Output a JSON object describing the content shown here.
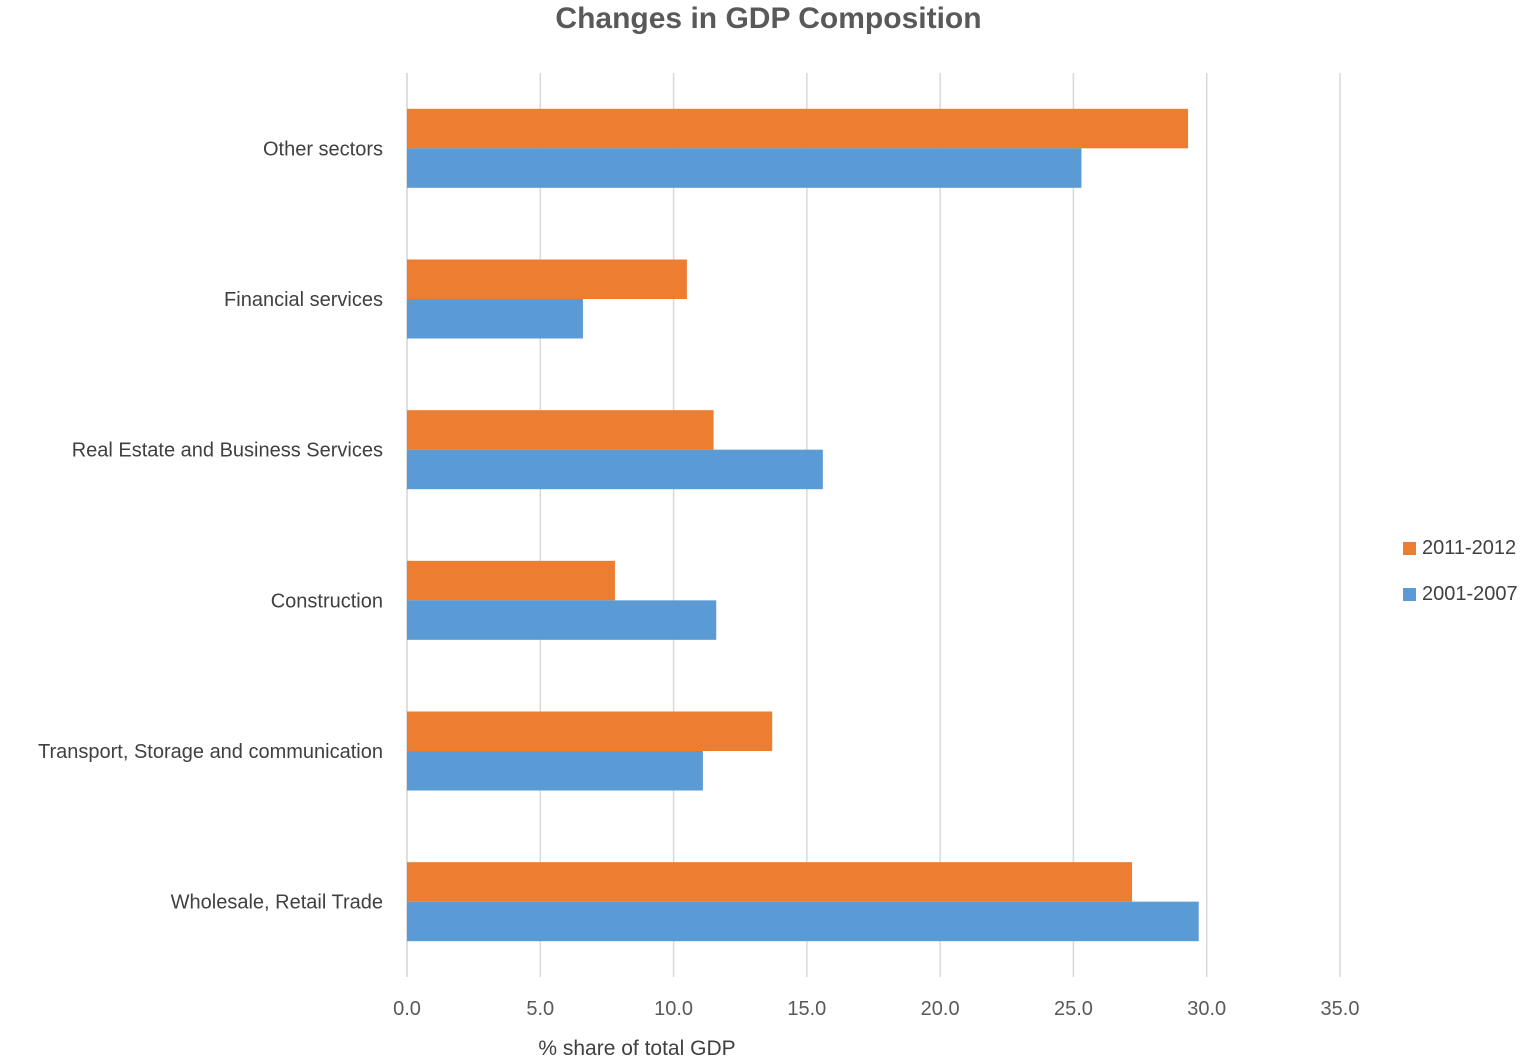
{
  "chart_data": {
    "type": "bar",
    "orientation": "horizontal",
    "title": "Changes in GDP Composition",
    "xlabel": "% share of total GDP",
    "ylabel": "",
    "xlim": [
      0,
      35
    ],
    "x_ticks": [
      "0.0",
      "5.0",
      "10.0",
      "15.0",
      "20.0",
      "25.0",
      "30.0",
      "35.0"
    ],
    "grid": "vertical",
    "legend_position": "right",
    "categories": [
      "Other sectors",
      "Financial services",
      "Real Estate and Business Services",
      "Construction",
      "Transport, Storage and communication",
      "Wholesale, Retail Trade"
    ],
    "series": [
      {
        "name": "2011-2012",
        "color": "#ED7D31",
        "values": [
          29.3,
          10.5,
          11.5,
          7.8,
          13.7,
          27.2
        ]
      },
      {
        "name": "2001-2007",
        "color": "#5B9BD5",
        "values": [
          25.3,
          6.6,
          15.6,
          11.6,
          11.1,
          29.7
        ]
      }
    ]
  }
}
